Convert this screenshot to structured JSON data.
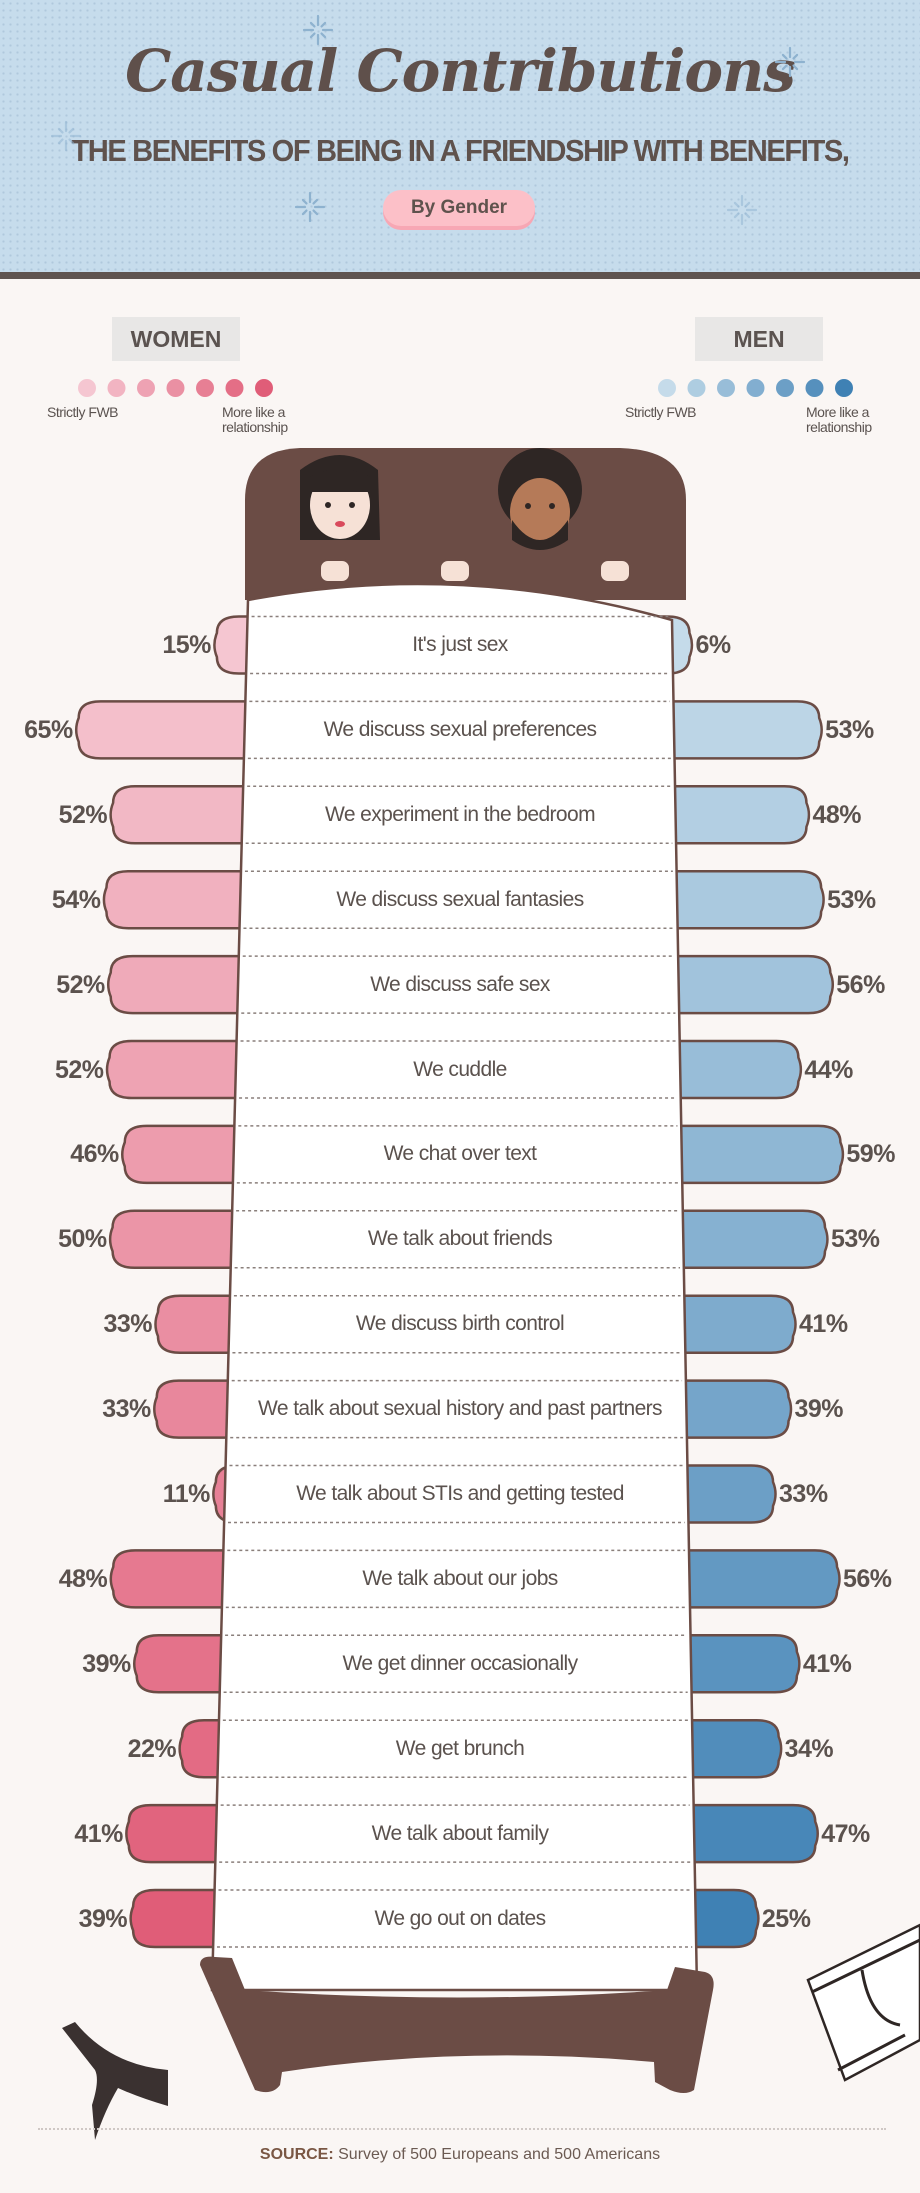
{
  "header": {
    "title": "Casual Contributions",
    "subtitle": "THE BENEFITS OF BEING IN A FRIENDSHIP WITH BENEFITS,",
    "pill": "By Gender"
  },
  "legend": {
    "women": {
      "label": "WOMEN",
      "low": "Strictly FWB",
      "high": "More like a relationship",
      "colors": [
        "#f5c6d1",
        "#f2b4c2",
        "#eea2b3",
        "#ea90a3",
        "#e77f94",
        "#e46e86",
        "#e05d78"
      ]
    },
    "men": {
      "label": "MEN",
      "low": "Strictly FWB",
      "high": "More like a relationship",
      "colors": [
        "#c5dbea",
        "#aecde1",
        "#98bdd8",
        "#82aed0",
        "#6c9fc6",
        "#5690bd",
        "#3f81b4"
      ]
    }
  },
  "chart_data": {
    "type": "bar",
    "orientation": "horizontal-diverging",
    "unit": "%",
    "categories": [
      "It's just sex",
      "We discuss sexual preferences",
      "We experiment in the bedroom",
      "We discuss sexual fantasies",
      "We discuss safe sex",
      "We cuddle",
      "We chat over text",
      "We talk about friends",
      "We discuss birth control",
      "We talk about sexual history and past partners",
      "We talk about STIs and getting tested",
      "We talk about our jobs",
      "We get dinner occasionally",
      "We get brunch",
      "We talk about family",
      "We go out on dates"
    ],
    "series": [
      {
        "name": "WOMEN",
        "values": [
          15,
          65,
          52,
          54,
          52,
          52,
          46,
          50,
          33,
          33,
          11,
          48,
          39,
          22,
          41,
          39
        ]
      },
      {
        "name": "MEN",
        "values": [
          6,
          53,
          48,
          53,
          56,
          44,
          59,
          53,
          41,
          39,
          33,
          56,
          41,
          34,
          47,
          25
        ]
      }
    ],
    "color_scale": "light (Strictly FWB) to dark (More like a relationship), top to bottom"
  },
  "footer": {
    "source_label": "SOURCE:",
    "source_text": " Survey of 500 Europeans and 500 Americans"
  }
}
